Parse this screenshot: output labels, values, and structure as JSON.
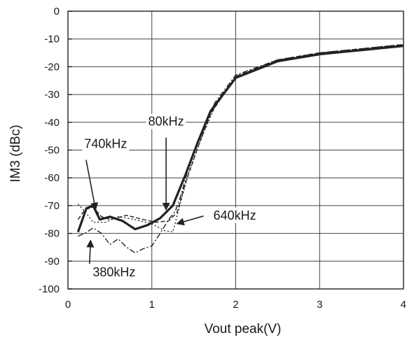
{
  "chart_data": {
    "type": "line",
    "xlabel": "Vout peak(V)",
    "ylabel": "IM3 (dBc)",
    "xlim": [
      0,
      4
    ],
    "ylim": [
      -100,
      0
    ],
    "xticks": [
      "0",
      "1",
      "2",
      "3",
      "4"
    ],
    "yticks": [
      "0",
      "-10",
      "-20",
      "-30",
      "-40",
      "-50",
      "-60",
      "-70",
      "-80",
      "-90",
      "-100"
    ],
    "grid": true,
    "series": [
      {
        "name": "80kHz",
        "style": "solid-thick",
        "x": [
          0.12,
          0.22,
          0.3,
          0.38,
          0.5,
          0.65,
          0.8,
          0.95,
          1.1,
          1.25,
          1.4,
          1.55,
          1.7,
          2.0,
          2.5,
          3.0,
          3.5,
          4.0
        ],
        "y": [
          -79.5,
          -71.0,
          -70.0,
          -75.0,
          -74.0,
          -75.5,
          -78.5,
          -77.0,
          -74.5,
          -70.0,
          -59.0,
          -47.0,
          -36.0,
          -24.0,
          -18.0,
          -15.5,
          -14.0,
          -12.5
        ]
      },
      {
        "name": "740kHz",
        "style": "dashed",
        "x": [
          0.12,
          0.2,
          0.3,
          0.4,
          0.5,
          0.7,
          0.9,
          1.05,
          1.2,
          1.3,
          1.4,
          1.55,
          1.7,
          2.0,
          2.5,
          3.0,
          3.5,
          4.0
        ],
        "y": [
          -75.0,
          -71.5,
          -70.5,
          -74.0,
          -75.0,
          -73.5,
          -75.0,
          -76.0,
          -75.5,
          -72.5,
          -62.0,
          -49.0,
          -37.0,
          -23.5,
          -17.5,
          -15.0,
          -13.5,
          -12.0
        ]
      },
      {
        "name": "640kHz",
        "style": "dotted",
        "x": [
          0.12,
          0.2,
          0.3,
          0.45,
          0.6,
          0.8,
          1.0,
          1.15,
          1.25,
          1.35,
          1.45,
          1.6,
          1.75,
          2.0,
          2.5,
          3.0,
          3.5,
          4.0
        ],
        "y": [
          -69.5,
          -72.0,
          -76.0,
          -76.0,
          -74.0,
          -75.0,
          -76.5,
          -79.0,
          -79.5,
          -68.0,
          -57.0,
          -45.0,
          -34.5,
          -23.5,
          -17.8,
          -15.2,
          -13.8,
          -12.3
        ]
      },
      {
        "name": "380kHz",
        "style": "dash-dot",
        "x": [
          0.12,
          0.2,
          0.3,
          0.4,
          0.5,
          0.6,
          0.7,
          0.8,
          0.9,
          1.0,
          1.1,
          1.2,
          1.28,
          1.35,
          1.45,
          1.6,
          1.75,
          2.0,
          2.5,
          3.0,
          3.5,
          4.0
        ],
        "y": [
          -81.0,
          -80.0,
          -78.0,
          -80.0,
          -84.0,
          -82.0,
          -85.0,
          -87.0,
          -85.5,
          -84.5,
          -80.0,
          -75.0,
          -72.0,
          -66.0,
          -55.0,
          -43.0,
          -33.0,
          -23.0,
          -17.5,
          -15.0,
          -13.5,
          -12.0
        ]
      }
    ],
    "annotations": [
      {
        "text": "80kHz",
        "x": 1.17,
        "y": -42.5,
        "arrow_to": [
          1.17,
          -71.5
        ]
      },
      {
        "text": "740kHz",
        "x": 0.45,
        "y": -50.5,
        "arrow_to": [
          0.33,
          -71.5
        ]
      },
      {
        "text": "640kHz",
        "x": 1.7,
        "y": -73.5,
        "arrow_to": [
          1.3,
          -76.5
        ]
      },
      {
        "text": "380kHz",
        "x": 0.55,
        "y": -94.0,
        "arrow_to": [
          0.27,
          -82.5
        ]
      }
    ]
  }
}
